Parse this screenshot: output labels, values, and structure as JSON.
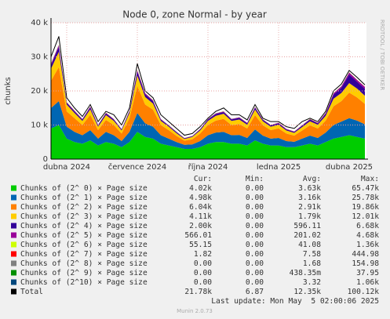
{
  "chart_data": {
    "type": "area",
    "stacked": true,
    "title": "Node 0, zone Normal - by year",
    "y_label": "chunks",
    "side_label": "RRDTOOL / TOBI OETIKER",
    "categories": [
      null,
      null,
      "dubna 2024",
      null,
      null,
      null,
      null,
      null,
      null,
      null,
      null,
      "července 2024",
      null,
      null,
      null,
      null,
      null,
      null,
      null,
      null,
      "října 2024",
      null,
      null,
      null,
      null,
      null,
      null,
      null,
      null,
      "ledna 2025",
      null,
      null,
      null,
      null,
      null,
      null,
      null,
      null,
      "dubna 2025",
      null,
      null
    ],
    "ylim": [
      0,
      40000
    ],
    "yticks": [
      0,
      {
        "value": 10000,
        "label": "10 k"
      },
      {
        "value": 20000,
        "label": "20 k"
      },
      {
        "value": 30000,
        "label": "30 k"
      },
      {
        "value": 40000,
        "label": "40 k"
      }
    ],
    "grid": true,
    "legend_headers": [
      "Cur:",
      "Min:",
      "Avg:",
      "Max:"
    ],
    "series": [
      {
        "name": "Chunks of (2^ 0) × Page size",
        "color": "#00cc00",
        "stats": [
          "4.02k",
          "0.00",
          "3.63k",
          "65.47k"
        ],
        "values": [
          9000,
          10000,
          6000,
          5000,
          4500,
          5500,
          4000,
          5000,
          4500,
          3500,
          5000,
          8000,
          6500,
          6000,
          4500,
          4000,
          3500,
          3000,
          3000,
          3500,
          4500,
          5000,
          5000,
          4500,
          4500,
          4000,
          5500,
          4500,
          4000,
          4000,
          3500,
          3500,
          4000,
          4500,
          4000,
          5000,
          6000,
          6500,
          7000,
          6500,
          6000
        ]
      },
      {
        "name": "Chunks of (2^ 1) × Page size",
        "color": "#0066b3",
        "stats": [
          "4.98k",
          "0.00",
          "3.16k",
          "25.78k"
        ],
        "values": [
          6000,
          7000,
          3500,
          3000,
          2500,
          3000,
          2000,
          3000,
          2500,
          1800,
          3000,
          5500,
          4000,
          3500,
          2500,
          2000,
          1500,
          1200,
          1300,
          1800,
          2500,
          2800,
          3000,
          2500,
          2600,
          2200,
          3200,
          2400,
          2000,
          2200,
          1800,
          1600,
          2000,
          2400,
          2200,
          2800,
          4000,
          4500,
          5000,
          4800,
          4200
        ]
      },
      {
        "name": "Chunks of (2^ 2) × Page size",
        "color": "#ff8000",
        "stats": [
          "6.04k",
          "0.00",
          "2.91k",
          "19.86k"
        ],
        "values": [
          8000,
          10000,
          4500,
          4000,
          3000,
          4500,
          2500,
          3500,
          3000,
          2200,
          4000,
          8000,
          5500,
          5000,
          3000,
          2500,
          1800,
          1200,
          1500,
          2200,
          3000,
          3500,
          3800,
          3000,
          3200,
          2800,
          4200,
          3000,
          2500,
          2800,
          2200,
          1800,
          2400,
          3000,
          2800,
          3500,
          5500,
          6000,
          7500,
          6800,
          6000
        ]
      },
      {
        "name": "Chunks of (2^ 3) × Page size",
        "color": "#ffcc00",
        "stats": [
          "4.11k",
          "0.00",
          "1.79k",
          "12.01k"
        ],
        "values": [
          3500,
          4500,
          2000,
          1500,
          1200,
          1600,
          1000,
          1400,
          1200,
          900,
          1500,
          3000,
          2200,
          1800,
          1200,
          1000,
          800,
          500,
          700,
          900,
          1200,
          1400,
          1500,
          1200,
          1300,
          1100,
          1600,
          1200,
          1000,
          1100,
          900,
          800,
          1000,
          1200,
          1100,
          1400,
          2200,
          2400,
          2800,
          2600,
          2400
        ]
      },
      {
        "name": "Chunks of (2^ 4) × Page size",
        "color": "#330099",
        "stats": [
          "2.00k",
          "0.00",
          "596.11",
          "6.68k"
        ],
        "values": [
          1000,
          1500,
          500,
          500,
          400,
          600,
          400,
          500,
          400,
          300,
          500,
          1200,
          800,
          700,
          400,
          300,
          300,
          200,
          200,
          300,
          400,
          500,
          500,
          400,
          500,
          400,
          600,
          400,
          400,
          400,
          300,
          300,
          400,
          500,
          400,
          600,
          1200,
          1500,
          2500,
          2000,
          2000
        ]
      },
      {
        "name": "Chunks of (2^ 5) × Page size",
        "color": "#990099",
        "stats": [
          "566.01",
          "0.00",
          "201.02",
          "4.68k"
        ],
        "values": [
          400,
          500,
          200,
          200,
          150,
          200,
          150,
          200,
          150,
          100,
          200,
          400,
          300,
          250,
          150,
          120,
          100,
          80,
          90,
          120,
          150,
          180,
          200,
          150,
          160,
          140,
          200,
          150,
          130,
          140,
          110,
          100,
          130,
          160,
          140,
          200,
          400,
          450,
          600,
          550,
          566
        ]
      },
      {
        "name": "Chunks of (2^ 6) × Page size",
        "color": "#ccff00",
        "stats": [
          "55.15",
          "0.00",
          "41.08",
          "1.36k"
        ],
        "values": [
          60,
          80,
          40,
          40,
          30,
          40,
          30,
          40,
          30,
          25,
          40,
          70,
          50,
          45,
          30,
          28,
          25,
          20,
          22,
          28,
          35,
          40,
          45,
          35,
          38,
          32,
          45,
          35,
          30,
          32,
          26,
          24,
          30,
          36,
          32,
          42,
          55,
          60,
          70,
          65,
          55
        ]
      },
      {
        "name": "Chunks of (2^ 7) × Page size",
        "color": "#ff0000",
        "stats": [
          "1.82",
          "0.00",
          "7.58",
          "444.98"
        ],
        "values": [
          10,
          12,
          8,
          8,
          7,
          8,
          6,
          7,
          6,
          5,
          7,
          12,
          9,
          8,
          6,
          6,
          5,
          4,
          5,
          6,
          7,
          8,
          8,
          7,
          7,
          6,
          8,
          7,
          6,
          6,
          5,
          5,
          6,
          7,
          6,
          8,
          3,
          2,
          2,
          2,
          2
        ]
      },
      {
        "name": "Chunks of (2^ 8) × Page size",
        "color": "#808080",
        "stats": [
          "0.00",
          "0.00",
          "1.68",
          "154.98"
        ],
        "values": [
          3,
          4,
          2,
          2,
          2,
          2,
          1,
          2,
          1,
          1,
          2,
          3,
          2,
          2,
          1,
          1,
          1,
          1,
          1,
          1,
          2,
          2,
          2,
          1,
          2,
          1,
          2,
          1,
          1,
          1,
          1,
          1,
          1,
          2,
          1,
          2,
          0,
          0,
          0,
          0,
          0
        ]
      },
      {
        "name": "Chunks of (2^ 9) × Page size",
        "color": "#008f00",
        "stats": [
          "0.00",
          "0.00",
          "438.35m",
          "37.95"
        ],
        "values": [
          1,
          1,
          1,
          0,
          0,
          0,
          0,
          1,
          0,
          0,
          0,
          1,
          1,
          0,
          0,
          0,
          0,
          0,
          0,
          0,
          1,
          1,
          0,
          0,
          1,
          0,
          1,
          0,
          0,
          0,
          0,
          0,
          0,
          1,
          0,
          1,
          0,
          0,
          0,
          0,
          0
        ]
      },
      {
        "name": "Chunks of (2^10) × Page size",
        "color": "#00487d",
        "stats": [
          "0.00",
          "0.00",
          "3.32",
          "1.06k"
        ],
        "values": [
          5,
          6,
          3,
          3,
          3,
          3,
          2,
          3,
          2,
          2,
          3,
          5,
          4,
          3,
          2,
          2,
          2,
          2,
          2,
          2,
          3,
          3,
          3,
          3,
          3,
          2,
          3,
          3,
          2,
          2,
          2,
          2,
          2,
          3,
          2,
          3,
          1,
          0,
          0,
          0,
          0
        ]
      },
      {
        "name": "Total",
        "color": "#000000",
        "line": true,
        "stats": [
          "21.78k",
          "6.87",
          "12.35k",
          "100.12k"
        ],
        "values": [
          30000,
          36000,
          18000,
          15000,
          12500,
          16000,
          11000,
          14000,
          13000,
          10000,
          15000,
          28000,
          20000,
          18000,
          13000,
          11000,
          9000,
          7000,
          7500,
          9500,
          12000,
          14000,
          15000,
          13000,
          13000,
          11500,
          16000,
          12000,
          11000,
          11000,
          9500,
          9000,
          11000,
          12000,
          11000,
          14000,
          20000,
          22000,
          26000,
          24000,
          21780
        ]
      }
    ],
    "last_update": "Last update: Mon May  5 02:00:06 2025",
    "footer": "Munin 2.0.73"
  }
}
